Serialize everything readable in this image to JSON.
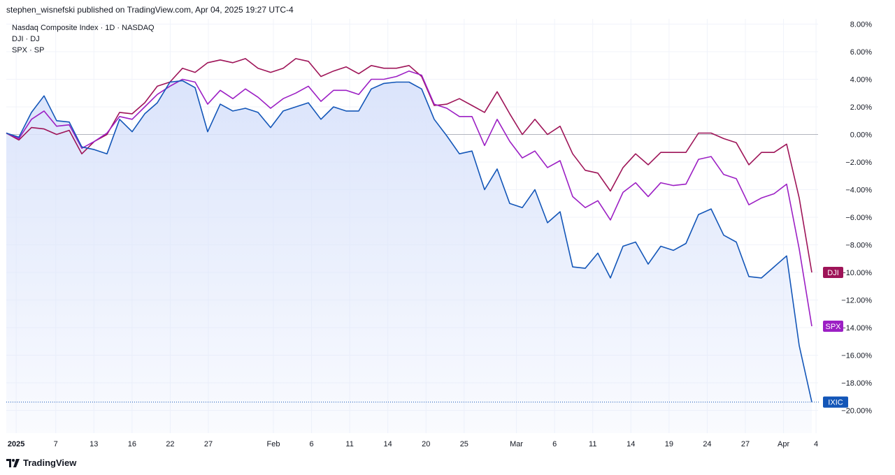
{
  "header": {
    "published": "stephen_wisnefski published on TradingView.com, Apr 04, 2025 19:27 UTC-4"
  },
  "legend": {
    "items": [
      "Nasdaq Composite Index · 1D · NASDAQ",
      "DJI · DJ",
      "SPX · SP"
    ]
  },
  "footer": {
    "brand": "TradingView"
  },
  "colors": {
    "ixic": "#1356b8",
    "spx": "#9c1fc4",
    "dji": "#9e1458",
    "ixic_fill": "#dbe4fb",
    "grid": "#f0f3fa",
    "zero": "#b2b5be"
  },
  "chart_data": {
    "type": "line",
    "xlim": [
      0,
      57
    ],
    "ylim": [
      -21,
      8.5
    ],
    "y_ticks": [
      8,
      6,
      4,
      2,
      0,
      -2,
      -4,
      -6,
      -8,
      -10,
      -12,
      -14,
      -16,
      -18,
      -20
    ],
    "y_tick_labels": [
      "8.00%",
      "6.00%",
      "4.00%",
      "2.00%",
      "0.00%",
      "−2.00%",
      "−4.00%",
      "−6.00%",
      "−8.00%",
      "−10.00%",
      "−12.00%",
      "−14.00%",
      "−16.00%",
      "−18.00%",
      "−20.00%"
    ],
    "x_ticks": [
      {
        "x": 0.7,
        "label": "2025",
        "bold": true
      },
      {
        "x": 3.5,
        "label": "7"
      },
      {
        "x": 6.2,
        "label": "13"
      },
      {
        "x": 8.9,
        "label": "16"
      },
      {
        "x": 11.6,
        "label": "22"
      },
      {
        "x": 14.3,
        "label": "27"
      },
      {
        "x": 18.9,
        "label": "Feb"
      },
      {
        "x": 21.6,
        "label": "6"
      },
      {
        "x": 24.3,
        "label": "11"
      },
      {
        "x": 27.0,
        "label": "14"
      },
      {
        "x": 29.7,
        "label": "20"
      },
      {
        "x": 32.4,
        "label": "25"
      },
      {
        "x": 36.1,
        "label": "Mar"
      },
      {
        "x": 38.8,
        "label": "6"
      },
      {
        "x": 41.5,
        "label": "11"
      },
      {
        "x": 44.2,
        "label": "14"
      },
      {
        "x": 46.9,
        "label": "19"
      },
      {
        "x": 49.6,
        "label": "24"
      },
      {
        "x": 52.3,
        "label": "27"
      },
      {
        "x": 55.0,
        "label": "Apr"
      },
      {
        "x": 57.3,
        "label": "4"
      }
    ],
    "series": [
      {
        "name": "DJI",
        "values": [
          0.1,
          -0.4,
          0.5,
          0.4,
          0.0,
          0.3,
          -1.4,
          -0.5,
          0.0,
          1.6,
          1.5,
          2.3,
          3.5,
          3.8,
          4.8,
          4.5,
          5.2,
          5.4,
          5.2,
          5.5,
          4.8,
          4.5,
          4.8,
          5.5,
          5.3,
          4.2,
          4.6,
          4.9,
          4.4,
          5.0,
          4.8,
          4.8,
          5.0,
          4.2,
          2.1,
          2.2,
          2.6,
          2.1,
          1.6,
          3.1,
          1.5,
          0.0,
          1.1,
          0.0,
          0.6,
          -1.4,
          -2.6,
          -2.8,
          -4.1,
          -2.4,
          -1.4,
          -2.2,
          -1.3,
          -1.3,
          -1.3,
          0.1,
          0.1,
          -0.3,
          -0.6,
          -2.2,
          -1.3,
          -1.3,
          -0.7,
          -4.6,
          -10.0
        ]
      },
      {
        "name": "SPX",
        "values": [
          0.1,
          -0.3,
          1.1,
          1.7,
          0.6,
          0.7,
          -1.0,
          -0.5,
          0.1,
          1.3,
          1.1,
          2.0,
          2.9,
          3.5,
          4.0,
          3.8,
          2.2,
          3.2,
          2.6,
          3.3,
          2.7,
          1.9,
          2.6,
          3.0,
          3.5,
          2.4,
          3.2,
          3.2,
          2.9,
          4.0,
          4.0,
          4.2,
          4.6,
          4.3,
          2.2,
          1.9,
          1.3,
          1.3,
          -0.8,
          1.1,
          -0.5,
          -1.7,
          -1.2,
          -2.4,
          -1.9,
          -4.5,
          -5.3,
          -4.8,
          -6.2,
          -4.2,
          -3.5,
          -4.5,
          -3.5,
          -3.7,
          -3.6,
          -1.8,
          -1.6,
          -2.9,
          -3.2,
          -5.1,
          -4.6,
          -4.3,
          -3.6,
          -8.3,
          -13.9
        ]
      },
      {
        "name": "IXIC",
        "values": [
          0.1,
          -0.2,
          1.6,
          2.8,
          1.0,
          0.9,
          -0.9,
          -1.1,
          -1.4,
          1.1,
          0.2,
          1.5,
          2.3,
          3.8,
          3.9,
          3.4,
          0.2,
          2.2,
          1.7,
          1.9,
          1.6,
          0.5,
          1.7,
          2.0,
          2.3,
          1.1,
          2.0,
          1.7,
          1.7,
          3.3,
          3.7,
          3.8,
          3.8,
          3.3,
          1.1,
          -0.1,
          -1.4,
          -1.2,
          -4.0,
          -2.5,
          -5.0,
          -5.3,
          -4.0,
          -6.4,
          -5.6,
          -9.6,
          -9.7,
          -8.6,
          -10.4,
          -8.1,
          -7.8,
          -9.4,
          -8.1,
          -8.4,
          -7.9,
          -5.8,
          -5.4,
          -7.3,
          -7.8,
          -10.3,
          -10.4,
          -9.6,
          -8.8,
          -15.3,
          -19.4
        ]
      }
    ],
    "end_labels": [
      {
        "series": "DJI",
        "label": "DJI",
        "value": -10.0
      },
      {
        "series": "SPX",
        "label": "SPX",
        "value": -13.9
      },
      {
        "series": "IXIC",
        "label": "IXIC",
        "value": -19.4
      }
    ]
  }
}
